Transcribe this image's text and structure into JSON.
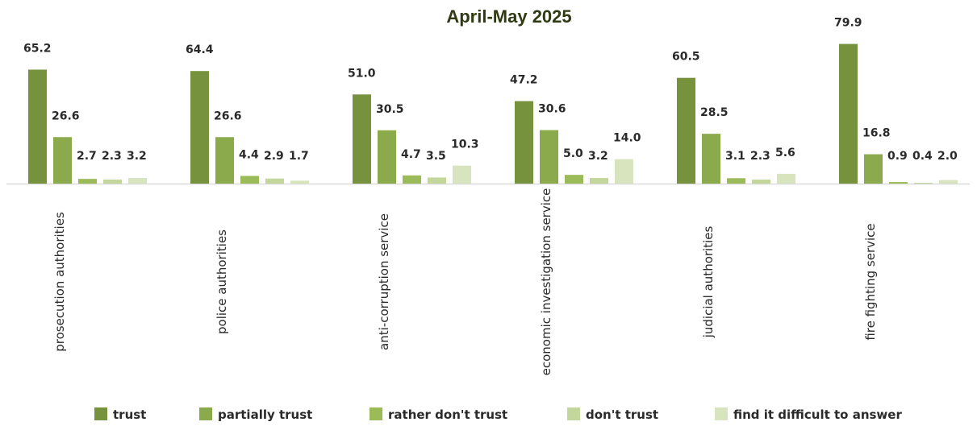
{
  "chart_data": {
    "type": "bar",
    "title": "April-May 2025",
    "categories": [
      "prosecution authorities",
      "police authorities",
      "anti-corruption service",
      "economic investigation service",
      "judicial authorities",
      "fire fighting service"
    ],
    "series": [
      {
        "name": "trust",
        "color": "#76923c",
        "values": [
          65.2,
          64.4,
          51.0,
          47.2,
          60.5,
          79.9
        ]
      },
      {
        "name": "partially trust",
        "color": "#8aaa4b",
        "values": [
          26.6,
          26.6,
          30.5,
          30.6,
          28.5,
          16.8
        ]
      },
      {
        "name": "rather don't trust",
        "color": "#9bbb59",
        "values": [
          2.7,
          4.4,
          4.7,
          5.0,
          3.1,
          0.9
        ]
      },
      {
        "name": "don't trust",
        "color": "#c3d69b",
        "values": [
          2.3,
          2.9,
          3.5,
          3.2,
          2.3,
          0.4
        ]
      },
      {
        "name": "find it difficult to answer",
        "color": "#d7e4bd",
        "values": [
          3.2,
          1.7,
          10.3,
          14.0,
          5.6,
          2.0
        ]
      }
    ],
    "value_labels": [
      [
        "65.2",
        "64.4",
        "51.0",
        "47.2",
        "60.5",
        "79.9"
      ],
      [
        "26.6",
        "26.6",
        "30.5",
        "30.6",
        "28.5",
        "16.8"
      ],
      [
        "2.7",
        "4.4",
        "4.7",
        "5.0",
        "3.1",
        "0.9"
      ],
      [
        "2.3",
        "2.9",
        "3.5",
        "3.2",
        "2.3",
        "0.4"
      ],
      [
        "3.2",
        "1.7",
        "10.3",
        "14.0",
        "5.6",
        "2.0"
      ]
    ],
    "ylim": [
      0,
      100
    ],
    "grid": false,
    "legend_position": "bottom",
    "xlabel": "",
    "ylabel": ""
  }
}
